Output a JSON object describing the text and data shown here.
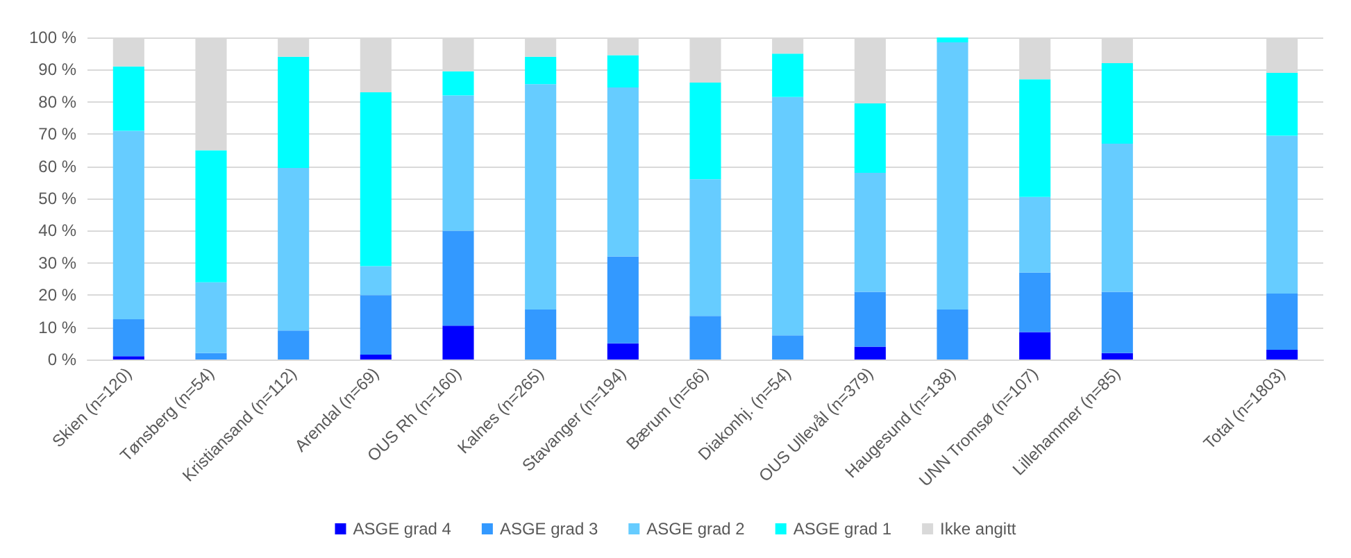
{
  "chart_data": {
    "type": "bar",
    "stacked": true,
    "categories": [
      "Skien (n=120)",
      "Tønsberg (n=54)",
      "Kristiansand (n=112)",
      "Arendal (n=69)",
      "OUS Rh (n=160)",
      "Kalnes (n=265)",
      "Stavanger (n=194)",
      "Bærum (n=66)",
      "Diakonhj. (n=54)",
      "OUS Ullevål (n=379)",
      "Haugesund (n=138)",
      "UNN Tromsø (n=107)",
      "Lillehammer (n=85)",
      null,
      "Total (n=1803)"
    ],
    "series": [
      {
        "name": "ASGE grad 4",
        "color": "#0000ff",
        "values": [
          1,
          0,
          0,
          1.5,
          10.5,
          0,
          5,
          0,
          0,
          4,
          0,
          8.5,
          2,
          null,
          3
        ]
      },
      {
        "name": "ASGE grad 3",
        "color": "#3399ff",
        "values": [
          11.5,
          2,
          9,
          18.5,
          29.5,
          15.5,
          27,
          13.5,
          7.5,
          17,
          15.5,
          18.5,
          19,
          null,
          17.5
        ]
      },
      {
        "name": "ASGE grad 2",
        "color": "#66ccff",
        "values": [
          58.5,
          22,
          50.5,
          9,
          42,
          70,
          52.5,
          42.5,
          74,
          37,
          83,
          23.5,
          46,
          null,
          49
        ]
      },
      {
        "name": "ASGE grad 1",
        "color": "#00ffff",
        "values": [
          20,
          41,
          34.5,
          54,
          7.5,
          8.5,
          10,
          30,
          13.5,
          21.5,
          1.5,
          36.5,
          25,
          null,
          19.5
        ]
      },
      {
        "name": "Ikke angitt",
        "color": "#d9d9d9",
        "values": [
          9,
          35,
          6,
          17,
          10.5,
          6,
          5.5,
          14,
          5,
          20.5,
          0,
          13,
          8,
          null,
          11
        ]
      }
    ],
    "ylim": [
      0,
      100
    ],
    "yticks": [
      {
        "value": 0,
        "label": "0 %"
      },
      {
        "value": 10,
        "label": "10 %"
      },
      {
        "value": 20,
        "label": "20 %"
      },
      {
        "value": 30,
        "label": "30 %"
      },
      {
        "value": 40,
        "label": "40 %"
      },
      {
        "value": 50,
        "label": "50 %"
      },
      {
        "value": 60,
        "label": "60 %"
      },
      {
        "value": 70,
        "label": "70 %"
      },
      {
        "value": 80,
        "label": "80 %"
      },
      {
        "value": 90,
        "label": "90 %"
      },
      {
        "value": 100,
        "label": "100 %"
      }
    ],
    "grid": "y",
    "legend": "bottom"
  }
}
